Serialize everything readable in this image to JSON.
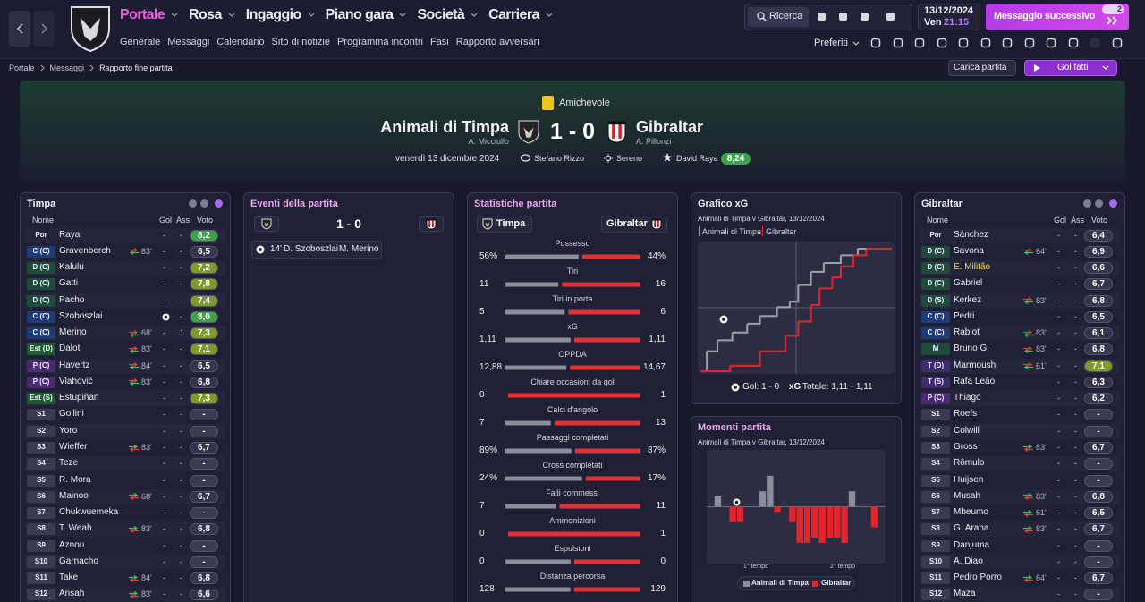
{
  "nav": {
    "menu": [
      "Portale",
      "Rosa",
      "Ingaggio",
      "Piano gara",
      "Società",
      "Carriera"
    ],
    "submenu": [
      "Generale",
      "Messaggi",
      "Calendario",
      "Sito di notizie",
      "Programma incontri",
      "Fasi",
      "Rapporto avversari"
    ],
    "search": "Ricerca",
    "date": "13/12/2024",
    "day": "Ven",
    "time": "21:15",
    "next_message": "Messaggio successivo",
    "notifications": "2",
    "favorites": "Preferiti"
  },
  "breadcrumb": [
    "Portale",
    "Messaggi",
    "Rapporto fine partita"
  ],
  "actions": {
    "load_match": "Carica partita",
    "goals": "Gol fatti"
  },
  "match": {
    "competition": "Amichevole",
    "home": "Animali di Timpa",
    "home_manager": "A. Micciullo",
    "score": "1 - 0",
    "away": "Gibraltar",
    "away_manager": "A. Pillonzi",
    "date": "venerdì 13 dicembre 2024",
    "referee": "Stefano Rizzo",
    "weather": "Sereno",
    "player_of_match": "David Raya",
    "player_of_match_rating": "8,24"
  },
  "home_team": {
    "title": "Timpa",
    "columns": [
      "Nome",
      "Gol",
      "Ass",
      "Voto"
    ],
    "players": [
      {
        "pos": "Por",
        "name": "Raya",
        "sub": null,
        "gol": "-",
        "ass": "-",
        "rating": "8,2"
      },
      {
        "pos": "C (C)",
        "name": "Gravenberch",
        "sub": "83'",
        "gol": "-",
        "ass": "-",
        "rating": "6,5"
      },
      {
        "pos": "D (C)",
        "name": "Kalulu",
        "sub": null,
        "gol": "-",
        "ass": "-",
        "rating": "7,2"
      },
      {
        "pos": "D (C)",
        "name": "Gatti",
        "sub": null,
        "gol": "-",
        "ass": "-",
        "rating": "7,8"
      },
      {
        "pos": "D (C)",
        "name": "Pacho",
        "sub": null,
        "gol": "-",
        "ass": "-",
        "rating": "7,4"
      },
      {
        "pos": "C (C)",
        "name": "Szoboszlai",
        "sub": null,
        "gol": null,
        "ass": "-",
        "rating": "8,0"
      },
      {
        "pos": "C (C)",
        "name": "Merino",
        "sub": "68'",
        "gol": "-",
        "ass": "1",
        "rating": "7,3"
      },
      {
        "pos": "Est (D)",
        "name": "Dalot",
        "sub": "83'",
        "gol": "-",
        "ass": "-",
        "rating": "7,1"
      },
      {
        "pos": "P (C)",
        "name": "Havertz",
        "sub": "84'",
        "gol": "-",
        "ass": "-",
        "rating": "6,5"
      },
      {
        "pos": "P (C)",
        "name": "Vlahović",
        "sub": "83'",
        "gol": "-",
        "ass": "-",
        "rating": "6,8"
      },
      {
        "pos": "Est (S)",
        "name": "Estupiñan",
        "sub": null,
        "gol": "-",
        "ass": "-",
        "rating": "7,3"
      },
      {
        "pos": "S1",
        "name": "Gollini",
        "sub": null,
        "gol": "-",
        "ass": "-",
        "rating": "-"
      },
      {
        "pos": "S2",
        "name": "Yoro",
        "sub": null,
        "gol": "-",
        "ass": "-",
        "rating": "-"
      },
      {
        "pos": "S3",
        "name": "Wieffer",
        "sub": "83'",
        "gol": "-",
        "ass": "-",
        "rating": "6,7"
      },
      {
        "pos": "S4",
        "name": "Teze",
        "sub": null,
        "gol": "-",
        "ass": "-",
        "rating": "-"
      },
      {
        "pos": "S5",
        "name": "R. Mora",
        "sub": null,
        "gol": "-",
        "ass": "-",
        "rating": "-"
      },
      {
        "pos": "S6",
        "name": "Mainoo",
        "sub": "68'",
        "gol": "-",
        "ass": "-",
        "rating": "6,7"
      },
      {
        "pos": "S7",
        "name": "Chukwuemeka",
        "sub": null,
        "gol": "-",
        "ass": "-",
        "rating": "-"
      },
      {
        "pos": "S8",
        "name": "T. Weah",
        "sub": "83'",
        "gol": "-",
        "ass": "-",
        "rating": "6,8"
      },
      {
        "pos": "S9",
        "name": "Aznou",
        "sub": null,
        "gol": "-",
        "ass": "-",
        "rating": "-"
      },
      {
        "pos": "S10",
        "name": "Garnacho",
        "sub": null,
        "gol": "-",
        "ass": "-",
        "rating": "-"
      },
      {
        "pos": "S11",
        "name": "Take",
        "sub": "84'",
        "gol": "-",
        "ass": "-",
        "rating": "6,8"
      },
      {
        "pos": "S12",
        "name": "Ansah",
        "sub": "83'",
        "gol": "-",
        "ass": "-",
        "rating": "6,6"
      }
    ]
  },
  "events": {
    "title": "Eventi della partita",
    "score": "1 - 0",
    "items": [
      {
        "minute": "14'",
        "scorer": "D. Szoboszlai",
        "assist": "M. Merino"
      }
    ]
  },
  "stats": {
    "title": "Statistiche partita",
    "home": "Timpa",
    "away": "Gibraltar",
    "labels": [
      "Possesso",
      "Tiri",
      "Tiri in porta",
      "xG",
      "OPPDA",
      "Chiare occasioni da gol",
      "Calci d'angolo",
      "Passaggi completati",
      "Cross completati",
      "Falli commessi",
      "Ammonizioni",
      "Espulsioni",
      "Distanza percorsa"
    ],
    "home_values": [
      56,
      11,
      5,
      1.11,
      12.88,
      0,
      7,
      89,
      24,
      7,
      0,
      0,
      128
    ],
    "home_value_labels": [
      "56%",
      "11",
      "5",
      "1,11",
      "12,88",
      "0",
      "7",
      "89%",
      "24%",
      "7",
      "0",
      "0",
      "128"
    ],
    "away_values": [
      44,
      16,
      6,
      1.11,
      14.67,
      1,
      13,
      87,
      17,
      11,
      1,
      0,
      129
    ],
    "away_value_labels": [
      "44%",
      "16",
      "6",
      "1,11",
      "14,67",
      "1",
      "13",
      "87%",
      "17%",
      "11",
      "1",
      "0",
      "129"
    ]
  },
  "xg_chart": {
    "title": "Grafico xG",
    "subtitle": "Animali di Timpa v Gibraltar, 13/12/2024",
    "legend": [
      "Animali di Timpa",
      "Gibraltar"
    ],
    "xlim": [
      0,
      90
    ],
    "ylim": [
      0,
      1.15
    ],
    "home_x": [
      0,
      3,
      8,
      15,
      22,
      28,
      36,
      42,
      46,
      52,
      58,
      66,
      74
    ],
    "home_y": [
      0,
      0.18,
      0.28,
      0.35,
      0.43,
      0.5,
      0.58,
      0.63,
      0.78,
      0.9,
      0.98,
      1.05,
      1.11
    ],
    "away_x": [
      0,
      14,
      28,
      40,
      46,
      52,
      56,
      62,
      66,
      72,
      78
    ],
    "away_y": [
      0,
      0.05,
      0.18,
      0.32,
      0.45,
      0.6,
      0.75,
      0.85,
      0.95,
      1.05,
      1.11
    ],
    "goals_label": "Gol: 1 - 0",
    "xg_key": "xG",
    "xg_total": "Totale: 1,11 - 1,11"
  },
  "momentum": {
    "title": "Momenti partita",
    "subtitle": "Animali di Timpa v Gibraltar, 13/12/2024",
    "ylim": [
      -11,
      11
    ],
    "values": [
      0,
      2,
      0,
      -3,
      -3,
      0,
      0,
      3,
      6,
      -1,
      0,
      -3,
      -7,
      -7,
      -6,
      -7,
      -6,
      -6,
      -7,
      3,
      0,
      0,
      -4,
      0
    ],
    "halves": [
      "1° tempo",
      "2° tempo"
    ],
    "legend": [
      "Animali di Timpa",
      "Gibraltar"
    ]
  },
  "away_team": {
    "title": "Gibraltar",
    "columns": [
      "Nome",
      "Gol",
      "Ass",
      "Voto"
    ],
    "players": [
      {
        "pos": "Por",
        "name": "Sánchez",
        "sub": null,
        "gol": "-",
        "ass": "-",
        "rating": "6,4"
      },
      {
        "pos": "D (C)",
        "name": "Savona",
        "sub": "64'",
        "gol": "-",
        "ass": "-",
        "rating": "6,9"
      },
      {
        "pos": "D (C)",
        "name": "E. Militão",
        "sub": null,
        "gol": "-",
        "ass": "-",
        "rating": "6,6"
      },
      {
        "pos": "D (C)",
        "name": "Gabriel",
        "sub": null,
        "gol": "-",
        "ass": "-",
        "rating": "6,7"
      },
      {
        "pos": "D (S)",
        "name": "Kerkez",
        "sub": "83'",
        "gol": "-",
        "ass": "-",
        "rating": "6,8"
      },
      {
        "pos": "C (C)",
        "name": "Pedri",
        "sub": null,
        "gol": "-",
        "ass": "-",
        "rating": "6,5"
      },
      {
        "pos": "C (C)",
        "name": "Rabiot",
        "sub": "83'",
        "gol": "-",
        "ass": "-",
        "rating": "6,1"
      },
      {
        "pos": "M",
        "name": "Bruno G.",
        "sub": "83'",
        "gol": "-",
        "ass": "-",
        "rating": "6,8"
      },
      {
        "pos": "T (D)",
        "name": "Marmoush",
        "sub": "61'",
        "gol": "-",
        "ass": "-",
        "rating": "7,1"
      },
      {
        "pos": "T (S)",
        "name": "Rafa Leão",
        "sub": null,
        "gol": "-",
        "ass": "-",
        "rating": "6,3"
      },
      {
        "pos": "P (C)",
        "name": "Thiago",
        "sub": null,
        "gol": "-",
        "ass": "-",
        "rating": "6,2"
      },
      {
        "pos": "S1",
        "name": "Roefs",
        "sub": null,
        "gol": "-",
        "ass": "-",
        "rating": "-"
      },
      {
        "pos": "S2",
        "name": "Colwill",
        "sub": null,
        "gol": "-",
        "ass": "-",
        "rating": "-"
      },
      {
        "pos": "S3",
        "name": "Gross",
        "sub": "83'",
        "gol": "-",
        "ass": "-",
        "rating": "6,7"
      },
      {
        "pos": "S4",
        "name": "Rômulo",
        "sub": null,
        "gol": "-",
        "ass": "-",
        "rating": "-"
      },
      {
        "pos": "S5",
        "name": "Huijsen",
        "sub": null,
        "gol": "-",
        "ass": "-",
        "rating": "-"
      },
      {
        "pos": "S6",
        "name": "Musah",
        "sub": "83'",
        "gol": "-",
        "ass": "-",
        "rating": "6,8"
      },
      {
        "pos": "S7",
        "name": "Mbeumo",
        "sub": "61'",
        "gol": "-",
        "ass": "-",
        "rating": "6,5"
      },
      {
        "pos": "S8",
        "name": "G. Arana",
        "sub": "83'",
        "gol": "-",
        "ass": "-",
        "rating": "6,7"
      },
      {
        "pos": "S9",
        "name": "Danjuma",
        "sub": null,
        "gol": "-",
        "ass": "-",
        "rating": "-"
      },
      {
        "pos": "S10",
        "name": "A. Diao",
        "sub": null,
        "gol": "-",
        "ass": "-",
        "rating": "-"
      },
      {
        "pos": "S11",
        "name": "Pedro Porro",
        "sub": "64'",
        "gol": "-",
        "ass": "-",
        "rating": "6,7"
      },
      {
        "pos": "S12",
        "name": "Maza",
        "sub": null,
        "gol": "-",
        "ass": "-",
        "rating": "-"
      }
    ]
  }
}
